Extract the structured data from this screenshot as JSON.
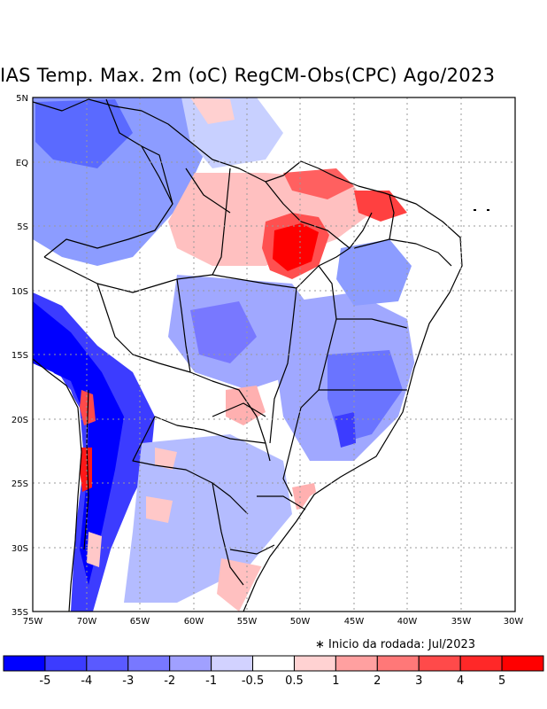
{
  "title": "IAS Temp. Max. 2m (oC) RegCM-Obs(CPC) Ago/2023",
  "run_note": "∗ Inicio da rodada: Jul/2023",
  "map": {
    "lon_ticks": [
      "75W",
      "70W",
      "65W",
      "60W",
      "55W",
      "50W",
      "45W",
      "40W",
      "35W",
      "30W"
    ],
    "lat_ticks": [
      "5N",
      "EQ",
      "5S",
      "10S",
      "15S",
      "20S",
      "25S",
      "30S",
      "35S"
    ]
  },
  "legend": {
    "labels": [
      "-5",
      "-4",
      "-3",
      "-2",
      "-1",
      "-0.5",
      "0.5",
      "1",
      "2",
      "3",
      "4",
      "5"
    ],
    "colors": [
      "#0000ff",
      "#3c3cff",
      "#5a5aff",
      "#7878ff",
      "#a0a0ff",
      "#d2d2ff",
      "#ffffff",
      "#ffd2d2",
      "#ffa0a0",
      "#ff7878",
      "#ff4a4a",
      "#ff2828",
      "#ff0000"
    ]
  },
  "colors": {
    "strong_cool": "#0000ff",
    "cool": "#7878ff",
    "light_cool": "#a8b4ff",
    "light_warm": "#ffc8c8",
    "warm": "#ff5050",
    "strong_warm": "#ff0000"
  }
}
